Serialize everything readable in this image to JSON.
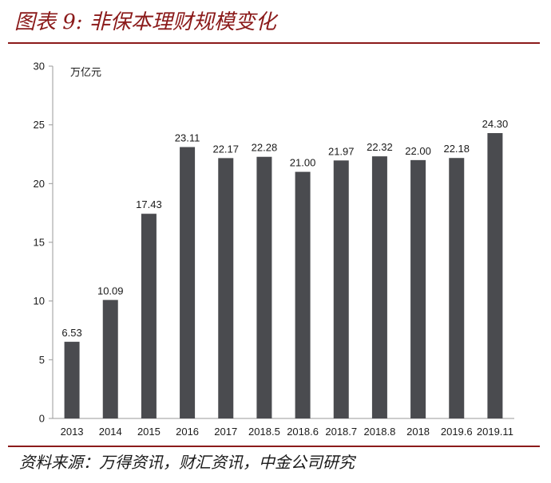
{
  "figure": {
    "title": "图表 9:  非保本理财规模变化",
    "source": "资料来源：万得资讯，财汇资讯，中金公司研究"
  },
  "chart_data": {
    "type": "bar",
    "categories": [
      "2013",
      "2014",
      "2015",
      "2016",
      "2017",
      "2018.5",
      "2018.6",
      "2018.7",
      "2018.8",
      "2018",
      "2019.6",
      "2019.11"
    ],
    "values": [
      6.53,
      10.09,
      17.43,
      23.11,
      22.17,
      22.28,
      21.0,
      21.97,
      22.32,
      22.0,
      22.18,
      24.3
    ],
    "data_labels": [
      "6.53",
      "10.09",
      "17.43",
      "23.11",
      "22.17",
      "22.28",
      "21.00",
      "21.97",
      "22.32",
      "22.00",
      "22.18",
      "24.30"
    ],
    "unit_label": "万亿元",
    "ylim": [
      0,
      30
    ],
    "yticks": [
      0,
      5,
      10,
      15,
      20,
      25,
      30
    ],
    "grid": false,
    "legend": "none",
    "bar_color": "#4a4b4f",
    "axis_color": "#9a9a9a"
  }
}
